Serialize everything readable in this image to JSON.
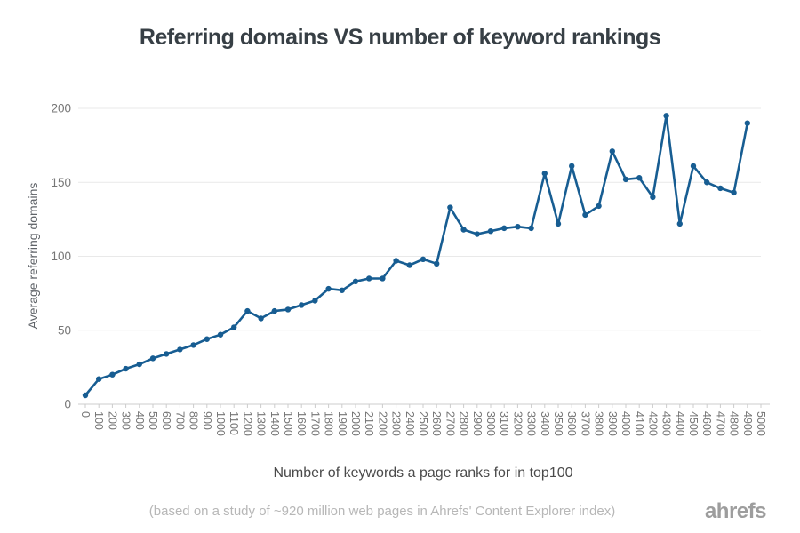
{
  "title": "Referring domains VS number of keyword rankings",
  "footnote": "(based on a study of ~920 million web pages in Ahrefs' Content Explorer index)",
  "brand": "ahrefs",
  "colors": {
    "line": "#175d92",
    "marker": "#175d92",
    "grid": "#e9e9e9",
    "axis_line": "#d8d8d8",
    "tick_mark": "#cccccc",
    "tick_text": "#767676",
    "title_text": "#373f45",
    "footnote_text": "#b7b7b7",
    "logo_text": "#9d9d9d"
  },
  "chart_data": {
    "type": "line",
    "title": "Referring domains VS number of keyword rankings",
    "xlabel": "Number of keywords a page ranks for in top100",
    "ylabel": "Average referring domains",
    "legend": "none",
    "grid": true,
    "xlim": [
      0,
      5000
    ],
    "ylim": [
      0,
      200
    ],
    "y_ticks": [
      0,
      50,
      100,
      150,
      200
    ],
    "x_tick_labels": [
      "0",
      "100",
      "200",
      "300",
      "400",
      "500",
      "600",
      "700",
      "800",
      "900",
      "1000",
      "1100",
      "1200",
      "1300",
      "1400",
      "1500",
      "1600",
      "1700",
      "1800",
      "1900",
      "2000",
      "2100",
      "2200",
      "2300",
      "2400",
      "2500",
      "2600",
      "2700",
      "2800",
      "2900",
      "3000",
      "3100",
      "3200",
      "3300",
      "3400",
      "3500",
      "3600",
      "3700",
      "3800",
      "3900",
      "4000",
      "4100",
      "4200",
      "4300",
      "4400",
      "4500",
      "4600",
      "4700",
      "4800",
      "4900",
      "5000"
    ],
    "x": [
      0,
      100,
      200,
      300,
      400,
      500,
      600,
      700,
      800,
      900,
      1000,
      1100,
      1200,
      1300,
      1400,
      1500,
      1600,
      1700,
      1800,
      1900,
      2000,
      2100,
      2200,
      2300,
      2400,
      2500,
      2600,
      2700,
      2800,
      2900,
      3000,
      3100,
      3200,
      3300,
      3400,
      3500,
      3600,
      3700,
      3800,
      3900,
      4000,
      4100,
      4200,
      4300,
      4400,
      4500,
      4600,
      4700,
      4800,
      4900
    ],
    "values": [
      6,
      17,
      20,
      24,
      27,
      31,
      34,
      37,
      40,
      44,
      47,
      52,
      63,
      58,
      63,
      64,
      67,
      70,
      78,
      77,
      83,
      85,
      85,
      97,
      94,
      98,
      95,
      133,
      118,
      115,
      117,
      119,
      120,
      119,
      156,
      122,
      161,
      128,
      134,
      171,
      152,
      153,
      140,
      195,
      122,
      161,
      150,
      146,
      143,
      190
    ]
  }
}
